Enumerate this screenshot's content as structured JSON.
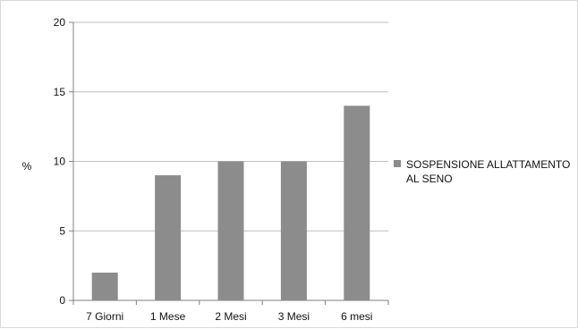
{
  "chart_data": {
    "type": "bar",
    "categories": [
      "7 Giorni",
      "1 Mese",
      "2 Mesi",
      "3 Mesi",
      "6 mesi"
    ],
    "series": [
      {
        "name": "SOSPENSIONE ALLATTAMENTO AL SENO",
        "name_lines": [
          "SOSPENSIONE ALLATTAMENTO",
          "AL SENO"
        ],
        "values": [
          2,
          9,
          10,
          10,
          14
        ],
        "color": "#8c8c8c"
      }
    ],
    "ylabel": "%",
    "ylim": [
      0,
      20
    ],
    "yticks": [
      0,
      5,
      10,
      15,
      20
    ],
    "grid": true,
    "legend_position": "right"
  }
}
